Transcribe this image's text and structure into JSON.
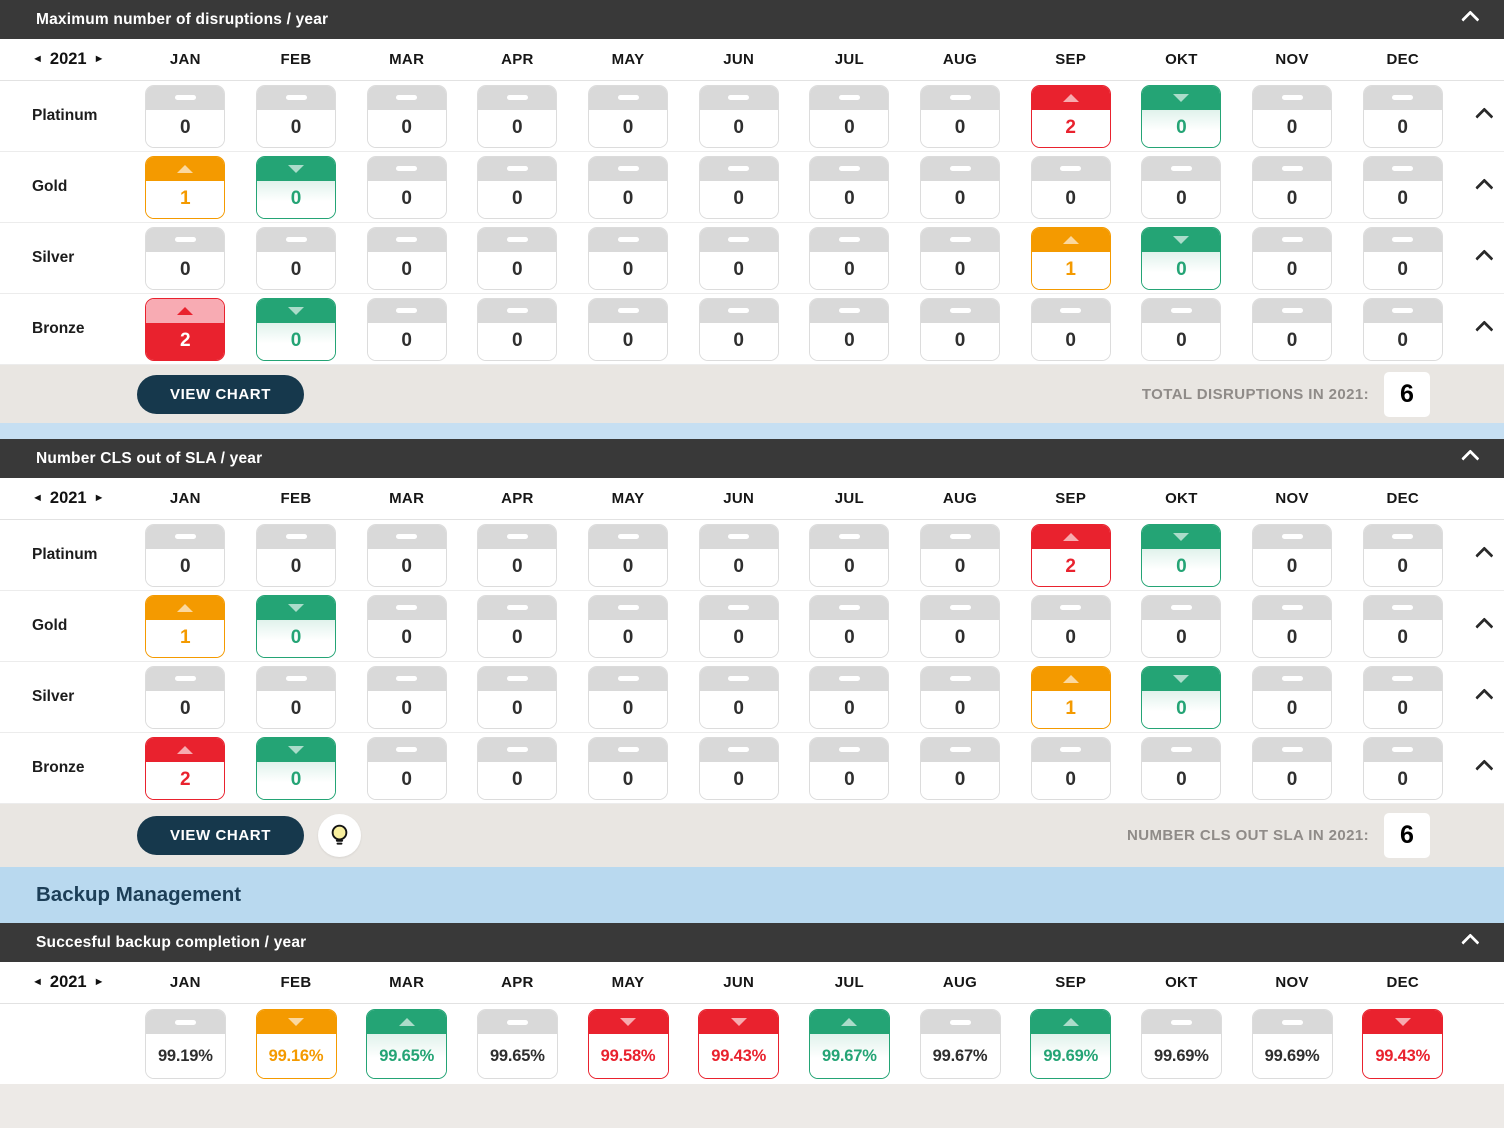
{
  "nav": {
    "prev": "◄",
    "year": "2021",
    "next": "►"
  },
  "months": [
    "JAN",
    "FEB",
    "MAR",
    "APR",
    "MAY",
    "JUN",
    "JUL",
    "AUG",
    "SEP",
    "OKT",
    "NOV",
    "DEC"
  ],
  "colors": {
    "header_bar": "#393939",
    "up_red": "#e9222e",
    "down_green": "#24a475",
    "up_orange": "#f49a00",
    "filled_cell_header": "#f8abb3",
    "button_navy": "#16384c",
    "footer_bg": "#e9e6e2",
    "divider_blue": "#c6dff2",
    "backup_band_blue": "#b9d9ef",
    "backup_band_text": "#1c3e57"
  },
  "sections": [
    {
      "title": "Maximum number of disruptions / year",
      "rows": [
        {
          "label": "Platinum",
          "cells": [
            {
              "v": "0"
            },
            {
              "v": "0"
            },
            {
              "v": "0"
            },
            {
              "v": "0"
            },
            {
              "v": "0"
            },
            {
              "v": "0"
            },
            {
              "v": "0"
            },
            {
              "v": "0"
            },
            {
              "v": "2",
              "s": "up-red"
            },
            {
              "v": "0",
              "s": "down-green"
            },
            {
              "v": "0"
            },
            {
              "v": "0"
            }
          ]
        },
        {
          "label": "Gold",
          "cells": [
            {
              "v": "1",
              "s": "up-orange"
            },
            {
              "v": "0",
              "s": "down-green"
            },
            {
              "v": "0"
            },
            {
              "v": "0"
            },
            {
              "v": "0"
            },
            {
              "v": "0"
            },
            {
              "v": "0"
            },
            {
              "v": "0"
            },
            {
              "v": "0"
            },
            {
              "v": "0"
            },
            {
              "v": "0"
            },
            {
              "v": "0"
            }
          ]
        },
        {
          "label": "Silver",
          "cells": [
            {
              "v": "0"
            },
            {
              "v": "0"
            },
            {
              "v": "0"
            },
            {
              "v": "0"
            },
            {
              "v": "0"
            },
            {
              "v": "0"
            },
            {
              "v": "0"
            },
            {
              "v": "0"
            },
            {
              "v": "1",
              "s": "up-orange"
            },
            {
              "v": "0",
              "s": "down-green"
            },
            {
              "v": "0"
            },
            {
              "v": "0"
            }
          ]
        },
        {
          "label": "Bronze",
          "cells": [
            {
              "v": "2",
              "s": "filled-red"
            },
            {
              "v": "0",
              "s": "down-green"
            },
            {
              "v": "0"
            },
            {
              "v": "0"
            },
            {
              "v": "0"
            },
            {
              "v": "0"
            },
            {
              "v": "0"
            },
            {
              "v": "0"
            },
            {
              "v": "0"
            },
            {
              "v": "0"
            },
            {
              "v": "0"
            },
            {
              "v": "0"
            }
          ]
        }
      ],
      "footer": {
        "button_label": "VIEW CHART",
        "total_label": "TOTAL DISRUPTIONS IN 2021:",
        "total_value": "6"
      }
    },
    {
      "title": "Number CLS out of SLA / year",
      "rows": [
        {
          "label": "Platinum",
          "cells": [
            {
              "v": "0"
            },
            {
              "v": "0"
            },
            {
              "v": "0"
            },
            {
              "v": "0"
            },
            {
              "v": "0"
            },
            {
              "v": "0"
            },
            {
              "v": "0"
            },
            {
              "v": "0"
            },
            {
              "v": "2",
              "s": "up-red"
            },
            {
              "v": "0",
              "s": "down-green"
            },
            {
              "v": "0"
            },
            {
              "v": "0"
            }
          ]
        },
        {
          "label": "Gold",
          "cells": [
            {
              "v": "1",
              "s": "up-orange"
            },
            {
              "v": "0",
              "s": "down-green"
            },
            {
              "v": "0"
            },
            {
              "v": "0"
            },
            {
              "v": "0"
            },
            {
              "v": "0"
            },
            {
              "v": "0"
            },
            {
              "v": "0"
            },
            {
              "v": "0"
            },
            {
              "v": "0"
            },
            {
              "v": "0"
            },
            {
              "v": "0"
            }
          ]
        },
        {
          "label": "Silver",
          "cells": [
            {
              "v": "0"
            },
            {
              "v": "0"
            },
            {
              "v": "0"
            },
            {
              "v": "0"
            },
            {
              "v": "0"
            },
            {
              "v": "0"
            },
            {
              "v": "0"
            },
            {
              "v": "0"
            },
            {
              "v": "1",
              "s": "up-orange"
            },
            {
              "v": "0",
              "s": "down-green"
            },
            {
              "v": "0"
            },
            {
              "v": "0"
            }
          ]
        },
        {
          "label": "Bronze",
          "cells": [
            {
              "v": "2",
              "s": "up-red"
            },
            {
              "v": "0",
              "s": "down-green"
            },
            {
              "v": "0"
            },
            {
              "v": "0"
            },
            {
              "v": "0"
            },
            {
              "v": "0"
            },
            {
              "v": "0"
            },
            {
              "v": "0"
            },
            {
              "v": "0"
            },
            {
              "v": "0"
            },
            {
              "v": "0"
            },
            {
              "v": "0"
            }
          ]
        }
      ],
      "footer": {
        "button_label": "VIEW CHART",
        "total_label": "NUMBER CLS OUT SLA IN 2021:",
        "total_value": "6"
      }
    },
    {
      "band_title": "Backup Management",
      "title": "Succesful backup completion / year",
      "cells": [
        {
          "v": "99.19%"
        },
        {
          "v": "99.16%",
          "s": "down-orange"
        },
        {
          "v": "99.65%",
          "s": "up-green"
        },
        {
          "v": "99.65%"
        },
        {
          "v": "99.58%",
          "s": "down-red"
        },
        {
          "v": "99.43%",
          "s": "down-red"
        },
        {
          "v": "99.67%",
          "s": "up-green"
        },
        {
          "v": "99.67%"
        },
        {
          "v": "99.69%",
          "s": "up-green"
        },
        {
          "v": "99.69%"
        },
        {
          "v": "99.69%"
        },
        {
          "v": "99.43%",
          "s": "down-red"
        }
      ]
    }
  ]
}
